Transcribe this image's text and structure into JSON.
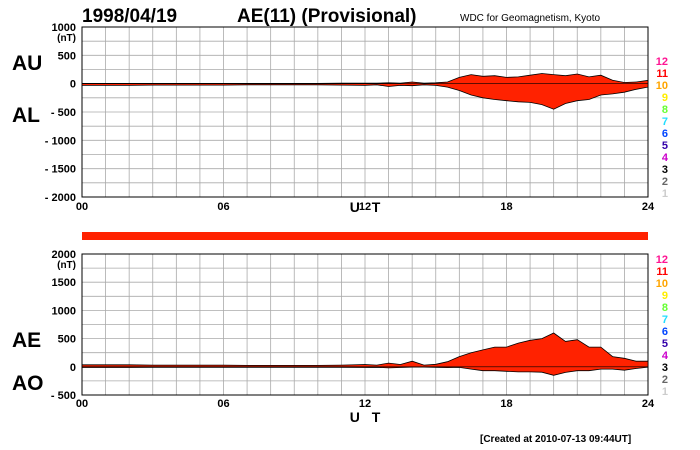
{
  "header": {
    "date": "1998/04/19",
    "title": "AE(11) (Provisional)",
    "source": "WDC for Geomagnetism, Kyoto"
  },
  "footer": {
    "created": "[Created at 2010-07-13 09:44UT]"
  },
  "colors": {
    "fill": "#ff2200",
    "band": "#ff2200",
    "grid": "#aaaaaa"
  },
  "legend": [
    {
      "label": "12",
      "color": "#ff1493"
    },
    {
      "label": "11",
      "color": "#ff0000"
    },
    {
      "label": "10",
      "color": "#ffa500"
    },
    {
      "label": "9",
      "color": "#ffee00"
    },
    {
      "label": "8",
      "color": "#66ff33"
    },
    {
      "label": "7",
      "color": "#22ddff"
    },
    {
      "label": "6",
      "color": "#0044ff"
    },
    {
      "label": "5",
      "color": "#3300aa"
    },
    {
      "label": "4",
      "color": "#cc00cc"
    },
    {
      "label": "3",
      "color": "#000000"
    },
    {
      "label": "2",
      "color": "#666666"
    },
    {
      "label": "1",
      "color": "#cccccc"
    }
  ],
  "chart_data": [
    {
      "type": "area",
      "series_labels": {
        "upper": "AU",
        "lower": "AL"
      },
      "unit": "(nT)",
      "xlabel": "U T",
      "xlim": [
        0,
        24
      ],
      "ylim": [
        -2000,
        1000
      ],
      "x_ticks": [
        "00",
        "06",
        "12",
        "18",
        "24"
      ],
      "y_ticks": [
        1000,
        500,
        0,
        -500,
        -1000,
        -1500,
        -2000
      ],
      "y_tick_labels": [
        "1000",
        "500",
        "0",
        "- 500",
        "- 1000",
        "- 1500",
        "- 2000"
      ],
      "x": [
        0,
        1,
        2,
        3,
        4,
        5,
        6,
        7,
        8,
        9,
        10,
        11,
        12,
        12.5,
        13,
        13.5,
        14,
        14.5,
        15,
        15.5,
        16,
        16.5,
        17,
        17.5,
        18,
        18.5,
        19,
        19.5,
        20,
        20.5,
        21,
        21.5,
        22,
        22.5,
        23,
        23.5,
        24
      ],
      "upper": [
        5,
        5,
        5,
        5,
        5,
        5,
        5,
        5,
        5,
        5,
        5,
        8,
        10,
        8,
        15,
        10,
        30,
        10,
        15,
        30,
        110,
        160,
        130,
        140,
        110,
        120,
        150,
        180,
        160,
        140,
        170,
        120,
        150,
        60,
        20,
        30,
        60
      ],
      "lower": [
        -30,
        -30,
        -30,
        -25,
        -25,
        -25,
        -25,
        -20,
        -20,
        -20,
        -20,
        -25,
        -30,
        -20,
        -50,
        -30,
        -35,
        -20,
        -30,
        -60,
        -120,
        -200,
        -250,
        -280,
        -300,
        -320,
        -330,
        -370,
        -450,
        -350,
        -300,
        -280,
        -200,
        -180,
        -150,
        -100,
        -60
      ]
    },
    {
      "type": "area",
      "series_labels": {
        "upper": "AE",
        "lower": "AO"
      },
      "unit": "(nT)",
      "xlabel": "U T",
      "xlim": [
        0,
        24
      ],
      "ylim": [
        -500,
        2000
      ],
      "x_ticks": [
        "00",
        "06",
        "12",
        "18",
        "24"
      ],
      "y_ticks": [
        2000,
        1500,
        1000,
        500,
        0,
        -500
      ],
      "y_tick_labels": [
        "2000",
        "1500",
        "1000",
        "500",
        "0",
        "- 500"
      ],
      "x": [
        0,
        1,
        2,
        3,
        4,
        5,
        6,
        7,
        8,
        9,
        10,
        11,
        12,
        12.5,
        13,
        13.5,
        14,
        14.5,
        15,
        15.5,
        16,
        16.5,
        17,
        17.5,
        18,
        18.5,
        19,
        19.5,
        20,
        20.5,
        21,
        21.5,
        22,
        22.5,
        23,
        23.5,
        24
      ],
      "upper": [
        35,
        35,
        35,
        30,
        30,
        30,
        30,
        25,
        25,
        25,
        25,
        30,
        40,
        30,
        65,
        40,
        100,
        30,
        45,
        90,
        180,
        250,
        300,
        350,
        350,
        420,
        470,
        500,
        600,
        450,
        480,
        350,
        350,
        180,
        150,
        100,
        100
      ],
      "lower": [
        -12,
        -12,
        -12,
        -10,
        -10,
        -10,
        -10,
        -8,
        -8,
        -8,
        -8,
        -10,
        -12,
        -8,
        -20,
        -12,
        -5,
        -5,
        -8,
        -15,
        -10,
        -40,
        -70,
        -70,
        -80,
        -90,
        -90,
        -95,
        -150,
        -100,
        -70,
        -70,
        -40,
        -40,
        -60,
        -30,
        -5
      ]
    }
  ]
}
